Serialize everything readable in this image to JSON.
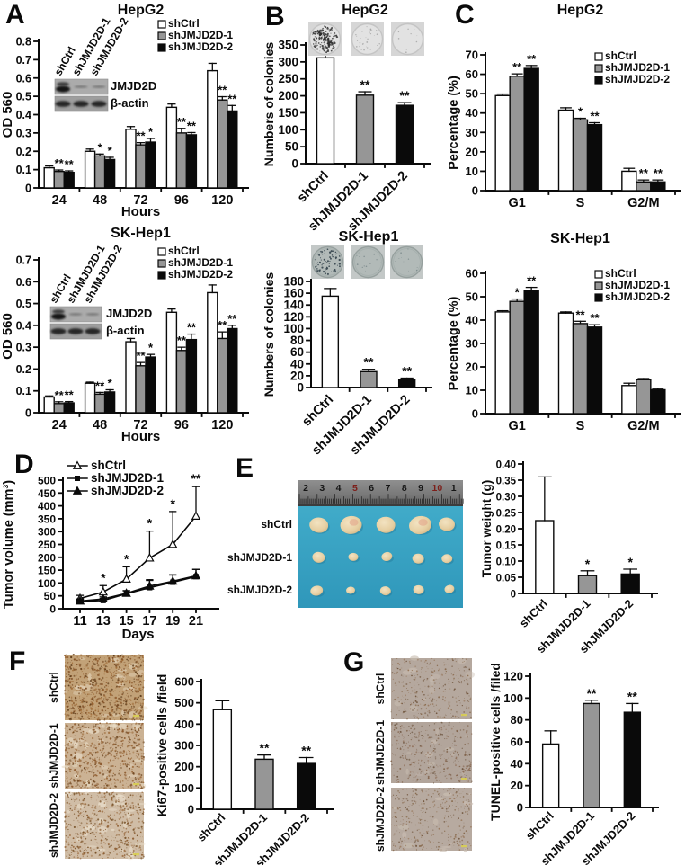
{
  "panel_labels": {
    "A": "A",
    "B": "B",
    "C": "C",
    "D": "D",
    "E": "E",
    "F": "F",
    "G": "G"
  },
  "groups": [
    "shCtrl",
    "shJMJD2D-1",
    "shJMJD2D-2"
  ],
  "series_colors": {
    "shCtrl": "#ffffff",
    "shJMJD2D-1": "#969696",
    "shJMJD2D-2": "#0a0a0a"
  },
  "western_blot": {
    "lanes": [
      "shCtrl",
      "shJMJD2D-1",
      "shJMJD2D-2"
    ],
    "proteins": [
      "JMJD2D",
      "β-actin"
    ]
  },
  "tumor_photo": {
    "row_labels": [
      "shCtrl",
      "shJMJD2D-1",
      "shJMJD2D-2"
    ],
    "ruler_numbers": [
      "2",
      "3",
      "4",
      "5",
      "6",
      "7",
      "8",
      "9",
      "10",
      "1"
    ],
    "ruler_red_numbers": [
      "5",
      "10"
    ],
    "background_color": "#3aa7c7"
  },
  "ihc_row_labels": [
    "shCtrl",
    "shJMJD2D-1",
    "shJMJD2D-2"
  ],
  "tunel_row_labels": [
    "shCtrl",
    "shJMJD2D-1",
    "shJMJD2D-2"
  ],
  "chart_data": [
    {
      "id": "a1",
      "panel": "A",
      "type": "bar",
      "title": "HepG2",
      "ylabel": "OD 560",
      "xlabel": "Hours",
      "ylim": [
        0,
        0.8
      ],
      "ytick": 0.1,
      "ydecimals": 1,
      "grid": false,
      "legend_position": "top-right-inside",
      "categories": [
        "24",
        "48",
        "72",
        "96",
        "120"
      ],
      "series": [
        {
          "name": "shCtrl",
          "fill": "#ffffff",
          "values": [
            0.11,
            0.2,
            0.32,
            0.44,
            0.64
          ],
          "errors": [
            0.01,
            0.012,
            0.015,
            0.018,
            0.04
          ],
          "sig": [
            "",
            "",
            "",
            "",
            ""
          ]
        },
        {
          "name": "shJMJD2D-1",
          "fill": "#969696",
          "values": [
            0.09,
            0.175,
            0.235,
            0.3,
            0.48
          ],
          "errors": [
            0.008,
            0.01,
            0.012,
            0.025,
            0.018
          ],
          "sig": [
            "**",
            "*",
            "**",
            "**",
            "**"
          ]
        },
        {
          "name": "shJMJD2D-2",
          "fill": "#0a0a0a",
          "values": [
            0.085,
            0.155,
            0.25,
            0.29,
            0.42
          ],
          "errors": [
            0.008,
            0.012,
            0.02,
            0.012,
            0.03
          ],
          "sig": [
            "**",
            "*",
            "*",
            "**",
            "**"
          ]
        }
      ]
    },
    {
      "id": "a2",
      "panel": "A",
      "type": "bar",
      "title": "SK-Hep1",
      "ylabel": "OD 560",
      "xlabel": "Hours",
      "ylim": [
        0,
        0.7
      ],
      "ytick": 0.1,
      "ydecimals": 1,
      "grid": false,
      "legend_position": "top-right-inside",
      "categories": [
        "24",
        "48",
        "72",
        "96",
        "120"
      ],
      "series": [
        {
          "name": "shCtrl",
          "fill": "#ffffff",
          "values": [
            0.072,
            0.135,
            0.325,
            0.46,
            0.55
          ],
          "errors": [
            0.005,
            0.005,
            0.015,
            0.015,
            0.035
          ],
          "sig": [
            "",
            "",
            "",
            "",
            ""
          ]
        },
        {
          "name": "shJMJD2D-1",
          "fill": "#969696",
          "values": [
            0.042,
            0.085,
            0.215,
            0.285,
            0.34
          ],
          "errors": [
            0.008,
            0.008,
            0.015,
            0.015,
            0.03
          ],
          "sig": [
            "**",
            "**",
            "**",
            "**",
            "**"
          ]
        },
        {
          "name": "shJMJD2D-2",
          "fill": "#0a0a0a",
          "values": [
            0.045,
            0.095,
            0.255,
            0.335,
            0.385
          ],
          "errors": [
            0.006,
            0.01,
            0.012,
            0.025,
            0.015
          ],
          "sig": [
            "**",
            "*",
            "*",
            "**",
            "**"
          ]
        }
      ]
    },
    {
      "id": "b1",
      "panel": "B",
      "type": "bar",
      "title": "HepG2",
      "ylabel": "Numbers of colonies",
      "xlabel": "",
      "ylim": [
        0,
        350
      ],
      "ytick": 50,
      "ydecimals": 0,
      "grid": false,
      "xtick_rotation": 45,
      "categories": [
        "shCtrl",
        "shJMJD2D-1",
        "shJMJD2D-2"
      ],
      "values": [
        312,
        202,
        172
      ],
      "errors": [
        8,
        10,
        8
      ],
      "sig": [
        "",
        "**",
        "**"
      ],
      "fills": [
        "#ffffff",
        "#969696",
        "#0a0a0a"
      ]
    },
    {
      "id": "b2",
      "panel": "B",
      "type": "bar",
      "title": "SK-Hep1",
      "ylabel": "Numbers of colonies",
      "xlabel": "",
      "ylim": [
        0,
        180
      ],
      "ytick": 20,
      "ydecimals": 0,
      "grid": false,
      "xtick_rotation": 45,
      "categories": [
        "shCtrl",
        "shJMJD2D-1",
        "shJMJD2D-2"
      ],
      "values": [
        155,
        27,
        13
      ],
      "errors": [
        13,
        4,
        3
      ],
      "sig": [
        "",
        "**",
        "**"
      ],
      "fills": [
        "#ffffff",
        "#969696",
        "#0a0a0a"
      ]
    },
    {
      "id": "c1",
      "panel": "C",
      "type": "bar",
      "title": "HepG2",
      "ylabel": "Percentage (%)",
      "xlabel": "",
      "ylim": [
        0,
        70
      ],
      "ytick": 10,
      "ydecimals": 0,
      "grid": false,
      "legend_position": "top-right-inside",
      "categories": [
        "G1",
        "S",
        "G2/M"
      ],
      "series": [
        {
          "name": "shCtrl",
          "fill": "#ffffff",
          "values": [
            49,
            41.5,
            10
          ],
          "errors": [
            0.8,
            1.2,
            1.5
          ],
          "sig": [
            "",
            "",
            ""
          ]
        },
        {
          "name": "shJMJD2D-1",
          "fill": "#969696",
          "values": [
            59,
            36.5,
            4.5
          ],
          "errors": [
            1.2,
            0.8,
            1.0
          ],
          "sig": [
            "**",
            "*",
            "**"
          ]
        },
        {
          "name": "shJMJD2D-2",
          "fill": "#0a0a0a",
          "values": [
            63,
            34,
            4.5
          ],
          "errors": [
            1.5,
            1.0,
            1.0
          ],
          "sig": [
            "**",
            "**",
            "**"
          ]
        }
      ]
    },
    {
      "id": "c2",
      "panel": "C",
      "type": "bar",
      "title": "SK-Hep1",
      "ylabel": "Percentage (%)",
      "xlabel": "",
      "ylim": [
        0,
        60
      ],
      "ytick": 10,
      "ydecimals": 0,
      "grid": false,
      "legend_position": "top-right-inside",
      "categories": [
        "G1",
        "S",
        "G2/M"
      ],
      "series": [
        {
          "name": "shCtrl",
          "fill": "#ffffff",
          "values": [
            43.5,
            43,
            12
          ],
          "errors": [
            0.5,
            0.5,
            1.0
          ],
          "sig": [
            "",
            "",
            ""
          ]
        },
        {
          "name": "shJMJD2D-1",
          "fill": "#969696",
          "values": [
            48,
            38.5,
            14.5
          ],
          "errors": [
            1.0,
            1.0,
            0.5
          ],
          "sig": [
            "*",
            "**",
            ""
          ]
        },
        {
          "name": "shJMJD2D-2",
          "fill": "#0a0a0a",
          "values": [
            52.5,
            37,
            10.2
          ],
          "errors": [
            1.5,
            1.0,
            0.5
          ],
          "sig": [
            "**",
            "**",
            ""
          ]
        }
      ]
    },
    {
      "id": "d",
      "panel": "D",
      "type": "line",
      "title": "",
      "ylabel": "Tumor volume (mm³)",
      "xlabel": "Days",
      "ylim": [
        0,
        500
      ],
      "ytick": 50,
      "ydecimals": 0,
      "grid": false,
      "legend_position": "top-left-inside",
      "x": [
        "11",
        "13",
        "15",
        "17",
        "19",
        "21"
      ],
      "series": [
        {
          "name": "shCtrl",
          "marker": "triangle-open",
          "values": [
            40,
            65,
            115,
            197,
            250,
            360
          ],
          "errors": [
            12,
            25,
            48,
            105,
            128,
            115
          ],
          "sig": [
            "",
            "*",
            "*",
            "*",
            "*",
            "**"
          ]
        },
        {
          "name": "shJMJD2D-1",
          "marker": "square",
          "values": [
            28,
            32,
            58,
            82,
            103,
            125
          ],
          "errors": [
            8,
            8,
            12,
            28,
            28,
            28
          ],
          "sig": [
            "",
            "",
            "",
            "",
            "",
            ""
          ]
        },
        {
          "name": "shJMJD2D-2",
          "marker": "triangle",
          "values": [
            30,
            38,
            60,
            88,
            107,
            128
          ],
          "errors": [
            8,
            8,
            10,
            25,
            25,
            25
          ],
          "sig": [
            "",
            "",
            "",
            "",
            "",
            ""
          ]
        }
      ]
    },
    {
      "id": "e",
      "panel": "E",
      "type": "bar",
      "title": "",
      "ylabel": "Tumor weight (g)",
      "xlabel": "",
      "ylim": [
        0,
        0.4
      ],
      "ytick": 0.05,
      "ydecimals": 2,
      "grid": false,
      "xtick_rotation": 45,
      "categories": [
        "shCtrl",
        "shJMJD2D-1",
        "shJMJD2D-2"
      ],
      "values": [
        0.225,
        0.055,
        0.06
      ],
      "errors": [
        0.135,
        0.015,
        0.015
      ],
      "sig": [
        "",
        "*",
        "*"
      ],
      "fills": [
        "#ffffff",
        "#969696",
        "#0a0a0a"
      ]
    },
    {
      "id": "f",
      "panel": "F",
      "type": "bar",
      "title": "",
      "ylabel": "Ki67-positive cells /field",
      "xlabel": "",
      "ylim": [
        0,
        600
      ],
      "ytick": 100,
      "ydecimals": 0,
      "grid": false,
      "xtick_rotation": 45,
      "categories": [
        "shCtrl",
        "shJMJD2D-1",
        "shJMJD2D-2"
      ],
      "values": [
        468,
        235,
        215
      ],
      "errors": [
        42,
        20,
        28
      ],
      "sig": [
        "",
        "**",
        "**"
      ],
      "fills": [
        "#ffffff",
        "#969696",
        "#0a0a0a"
      ]
    },
    {
      "id": "g",
      "panel": "G",
      "type": "bar",
      "title": "",
      "ylabel": "TUNEL-positive cells /filed",
      "xlabel": "",
      "ylim": [
        0,
        120
      ],
      "ytick": 20,
      "ydecimals": 0,
      "grid": false,
      "xtick_rotation": 45,
      "categories": [
        "shCtrl",
        "shJMJD2D-1",
        "shJMJD2D-2"
      ],
      "values": [
        58,
        95,
        87
      ],
      "errors": [
        12,
        3,
        8
      ],
      "sig": [
        "",
        "**",
        "**"
      ],
      "fills": [
        "#ffffff",
        "#969696",
        "#0a0a0a"
      ]
    }
  ]
}
